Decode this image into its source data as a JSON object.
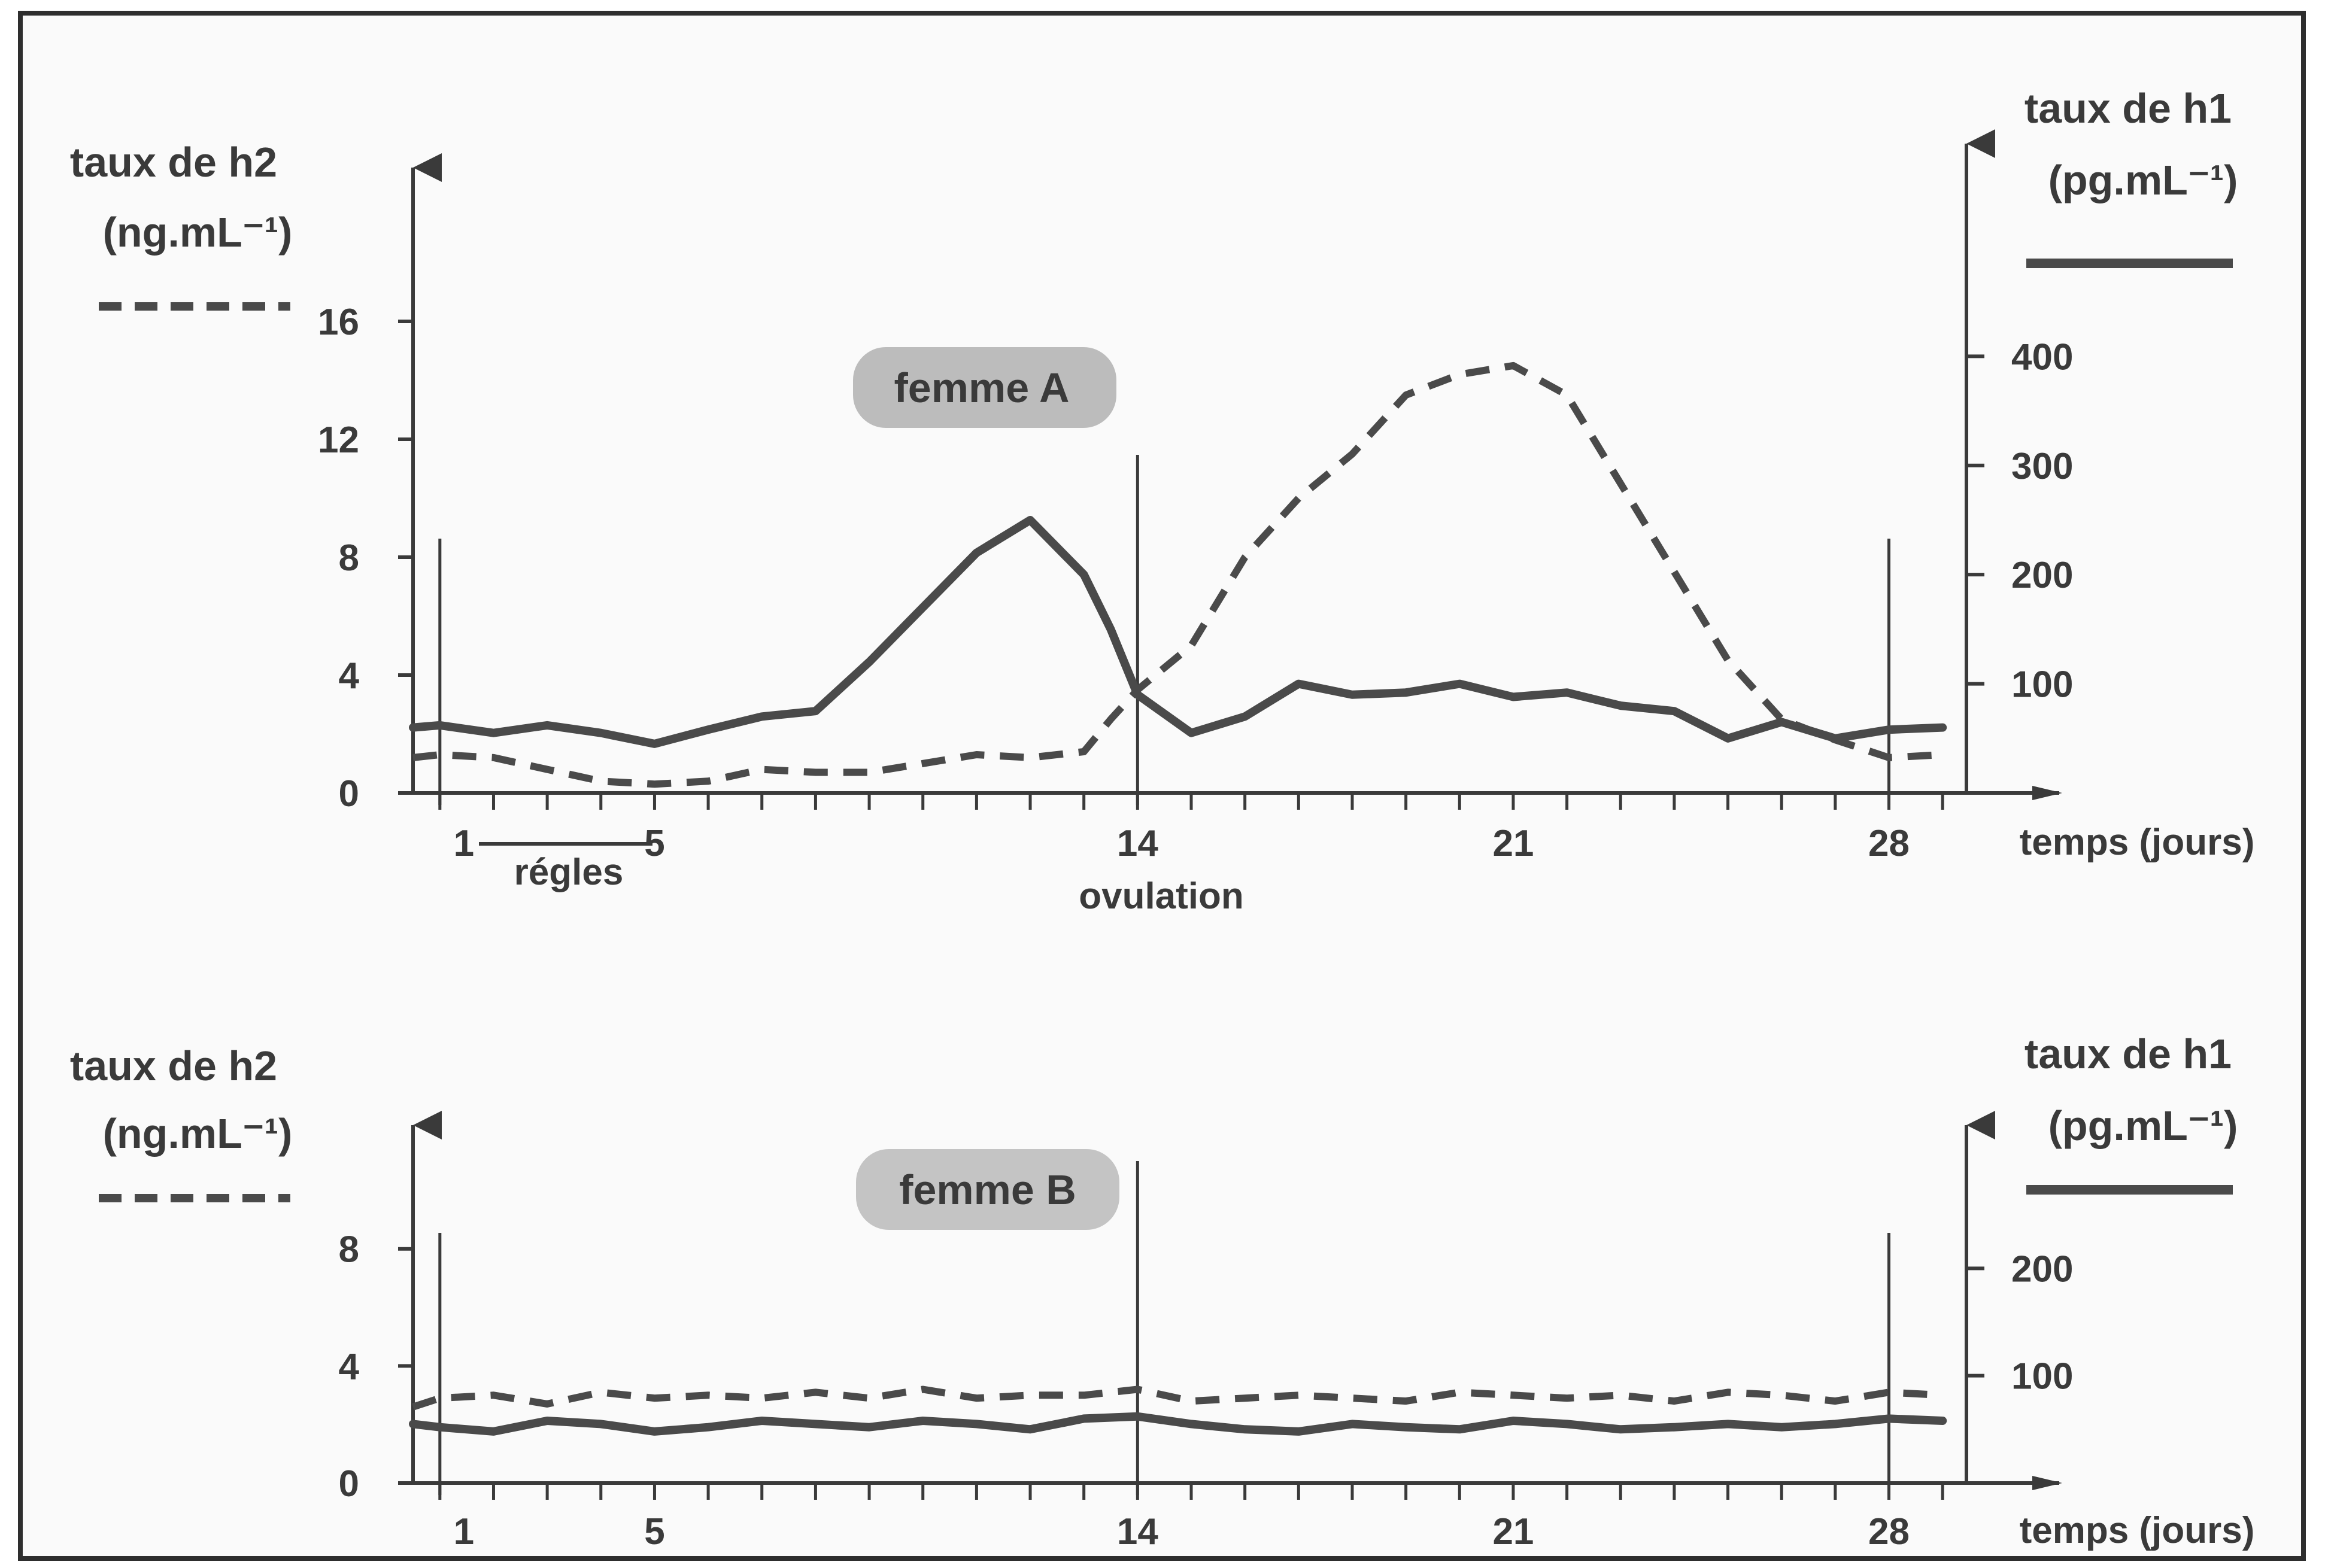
{
  "chart_data": [
    {
      "type": "line",
      "title": "femme A",
      "xlabel": "temps (jours)",
      "xlim": [
        0.5,
        29.5
      ],
      "x_ticks": [
        "1",
        "5",
        "14",
        "21",
        "28"
      ],
      "x_tick_values": [
        1,
        5,
        14,
        21,
        28
      ],
      "annotations": [
        {
          "text": "régles",
          "x_range": [
            1,
            5
          ]
        },
        {
          "text": "ovulation",
          "x": 14
        }
      ],
      "vertical_markers": [
        1,
        14,
        28
      ],
      "left_axis": {
        "label_line1": "taux de h2",
        "label_line2": "(ng.mL⁻¹)",
        "ylim": [
          0,
          20
        ],
        "ticks": [
          "0",
          "4",
          "8",
          "12",
          "16"
        ],
        "tick_values": [
          0,
          4,
          8,
          12,
          16
        ]
      },
      "right_axis": {
        "label_line1": "taux de h1",
        "label_line2": "(pg.mL⁻¹)",
        "ylim": [
          0,
          540
        ],
        "ticks": [
          "100",
          "200",
          "300",
          "400"
        ],
        "tick_values": [
          100,
          200,
          300,
          400
        ]
      },
      "series": [
        {
          "axis": "right",
          "style": "solid",
          "color": "#4a4a4a",
          "x": [
            0.5,
            1,
            2,
            3,
            4,
            5,
            6,
            7,
            8,
            9,
            10,
            11,
            12,
            13,
            13.5,
            14,
            15,
            16,
            17,
            18,
            19,
            20,
            21,
            22,
            23,
            24,
            25,
            26,
            27,
            28,
            29
          ],
          "y": [
            60,
            62,
            55,
            62,
            55,
            45,
            58,
            70,
            75,
            120,
            170,
            220,
            250,
            200,
            150,
            90,
            55,
            70,
            100,
            90,
            92,
            100,
            88,
            92,
            80,
            75,
            50,
            65,
            50,
            58,
            60
          ]
        },
        {
          "axis": "left",
          "style": "dashed",
          "color": "#4a4a4a",
          "x": [
            0.5,
            1,
            2,
            3,
            4,
            5,
            6,
            7,
            8,
            9,
            10,
            11,
            12,
            13,
            13.5,
            14,
            15,
            16,
            17,
            18,
            19,
            20,
            21,
            22,
            23,
            24,
            25,
            26,
            27,
            28,
            29
          ],
          "y": [
            1.2,
            1.3,
            1.2,
            0.8,
            0.4,
            0.3,
            0.4,
            0.8,
            0.7,
            0.7,
            1.0,
            1.3,
            1.2,
            1.4,
            2.5,
            3.5,
            5.0,
            8.0,
            10.0,
            11.5,
            13.5,
            14.2,
            14.5,
            13.5,
            10.5,
            7.5,
            4.5,
            2.5,
            1.8,
            1.2,
            1.3
          ]
        }
      ]
    },
    {
      "type": "line",
      "title": "femme B",
      "xlabel": "temps (jours)",
      "xlim": [
        0.5,
        29.5
      ],
      "x_ticks": [
        "1",
        "5",
        "14",
        "21",
        "28"
      ],
      "x_tick_values": [
        1,
        5,
        14,
        21,
        28
      ],
      "vertical_markers": [
        1,
        14,
        28
      ],
      "left_axis": {
        "label_line1": "taux de h2",
        "label_line2": "(ng.mL⁻¹)",
        "ylim": [
          0,
          11
        ],
        "ticks": [
          "0",
          "4",
          "8"
        ],
        "tick_values": [
          0,
          4,
          8
        ]
      },
      "right_axis": {
        "label_line1": "taux de h1",
        "label_line2": "(pg.mL⁻¹)",
        "ylim": [
          0,
          300
        ],
        "ticks": [
          "100",
          "200"
        ],
        "tick_values": [
          100,
          200
        ]
      },
      "series": [
        {
          "axis": "right",
          "style": "solid",
          "color": "#4a4a4a",
          "x": [
            0.5,
            1,
            2,
            3,
            4,
            5,
            6,
            7,
            8,
            9,
            10,
            11,
            12,
            13,
            14,
            15,
            16,
            17,
            18,
            19,
            20,
            21,
            22,
            23,
            24,
            25,
            26,
            27,
            28,
            29
          ],
          "y": [
            55,
            52,
            48,
            58,
            55,
            48,
            52,
            58,
            55,
            52,
            58,
            55,
            50,
            60,
            62,
            55,
            50,
            48,
            55,
            52,
            50,
            58,
            55,
            50,
            52,
            55,
            52,
            55,
            60,
            58
          ],
          "note": "approximately constant"
        },
        {
          "axis": "left",
          "style": "dashed",
          "color": "#4a4a4a",
          "x": [
            0.5,
            1,
            2,
            3,
            4,
            5,
            6,
            7,
            8,
            9,
            10,
            11,
            12,
            13,
            14,
            15,
            16,
            17,
            18,
            19,
            20,
            21,
            22,
            23,
            24,
            25,
            26,
            27,
            28,
            29
          ],
          "y": [
            2.6,
            2.9,
            3.0,
            2.7,
            3.1,
            2.9,
            3.0,
            2.9,
            3.1,
            2.9,
            3.2,
            2.9,
            3.0,
            3.0,
            3.2,
            2.8,
            2.9,
            3.0,
            2.9,
            2.8,
            3.1,
            3.0,
            2.9,
            3.0,
            2.8,
            3.1,
            3.0,
            2.8,
            3.1,
            3.0
          ]
        }
      ]
    }
  ]
}
